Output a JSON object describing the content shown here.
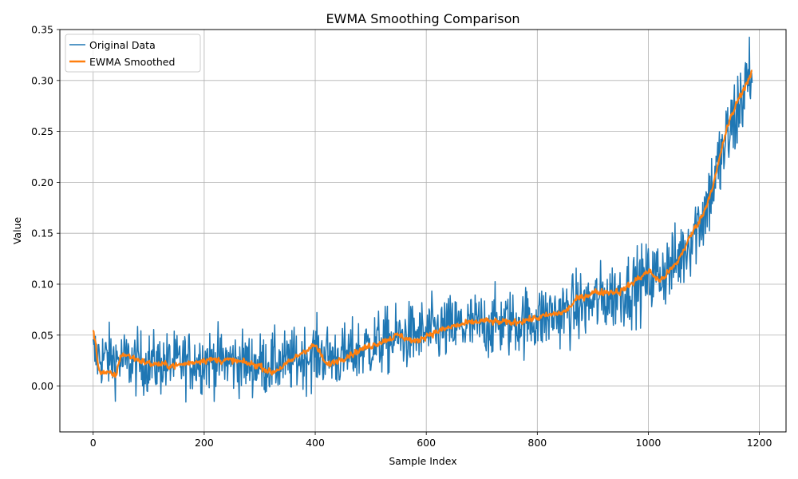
{
  "chart_data": {
    "type": "line",
    "title": "EWMA Smoothing Comparison",
    "xlabel": "Sample Index",
    "ylabel": "Value",
    "xlim": [
      -60,
      1248
    ],
    "ylim": [
      -0.045,
      0.35
    ],
    "x_ticks": [
      0,
      200,
      400,
      600,
      800,
      1000,
      1200
    ],
    "y_ticks": [
      0.0,
      0.05,
      0.1,
      0.15,
      0.2,
      0.25,
      0.3,
      0.35
    ],
    "x_tick_labels": [
      "0",
      "200",
      "400",
      "600",
      "800",
      "1000",
      "1200"
    ],
    "y_tick_labels": [
      "0.00",
      "0.05",
      "0.10",
      "0.15",
      "0.20",
      "0.25",
      "0.30",
      "0.35"
    ],
    "grid": true,
    "legend_position": "upper-left",
    "x_count": 1188,
    "series": [
      {
        "name": "Original Data",
        "color": "#1f77b4",
        "approx_trend": [
          [
            0,
            0.03
          ],
          [
            50,
            0.025
          ],
          [
            100,
            0.022
          ],
          [
            150,
            0.022
          ],
          [
            200,
            0.026
          ],
          [
            250,
            0.024
          ],
          [
            300,
            0.021
          ],
          [
            350,
            0.023
          ],
          [
            400,
            0.032
          ],
          [
            450,
            0.028
          ],
          [
            500,
            0.04
          ],
          [
            550,
            0.047
          ],
          [
            600,
            0.052
          ],
          [
            650,
            0.057
          ],
          [
            700,
            0.06
          ],
          [
            750,
            0.062
          ],
          [
            800,
            0.066
          ],
          [
            850,
            0.073
          ],
          [
            900,
            0.082
          ],
          [
            950,
            0.092
          ],
          [
            1000,
            0.105
          ],
          [
            1050,
            0.12
          ],
          [
            1100,
            0.17
          ],
          [
            1150,
            0.255
          ],
          [
            1188,
            0.312
          ]
        ],
        "noise_sd": 0.015
      },
      {
        "name": "EWMA Smoothed",
        "color": "#ff7f0e",
        "approx_values": [
          [
            0,
            0.054
          ],
          [
            10,
            0.015
          ],
          [
            40,
            0.01
          ],
          [
            50,
            0.032
          ],
          [
            100,
            0.022
          ],
          [
            150,
            0.02
          ],
          [
            200,
            0.026
          ],
          [
            250,
            0.025
          ],
          [
            300,
            0.02
          ],
          [
            320,
            0.013
          ],
          [
            350,
            0.022
          ],
          [
            380,
            0.035
          ],
          [
            400,
            0.04
          ],
          [
            420,
            0.02
          ],
          [
            450,
            0.028
          ],
          [
            500,
            0.04
          ],
          [
            550,
            0.05
          ],
          [
            580,
            0.043
          ],
          [
            600,
            0.05
          ],
          [
            650,
            0.059
          ],
          [
            700,
            0.064
          ],
          [
            750,
            0.062
          ],
          [
            800,
            0.067
          ],
          [
            850,
            0.073
          ],
          [
            870,
            0.085
          ],
          [
            900,
            0.092
          ],
          [
            950,
            0.093
          ],
          [
            1000,
            0.113
          ],
          [
            1020,
            0.103
          ],
          [
            1050,
            0.12
          ],
          [
            1080,
            0.152
          ],
          [
            1100,
            0.171
          ],
          [
            1120,
            0.205
          ],
          [
            1140,
            0.252
          ],
          [
            1160,
            0.28
          ],
          [
            1188,
            0.31
          ]
        ]
      }
    ]
  }
}
